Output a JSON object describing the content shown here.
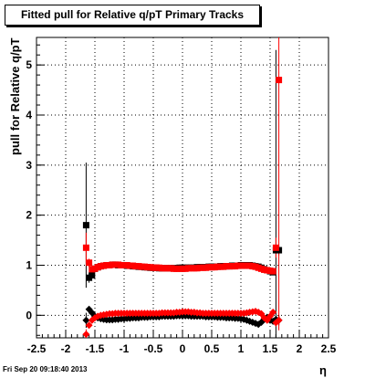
{
  "chart_data": {
    "type": "scatter",
    "title": "Fitted pull for Relative q/pT  Primary Tracks",
    "xlabel": "η",
    "ylabel": "pull for Relative q/pT",
    "xlim": [
      -2.5,
      2.5
    ],
    "ylim": [
      -0.45,
      5.55
    ],
    "x_ticks": [
      "-2.5",
      "-2",
      "-1.5",
      "-1",
      "-0.5",
      "0",
      "0.5",
      "1",
      "1.5",
      "2",
      "2.5"
    ],
    "y_ticks": [
      "0",
      "1",
      "2",
      "3",
      "4",
      "5"
    ],
    "grid": true,
    "series": [
      {
        "color": "#000000",
        "marker": "square",
        "x": [
          -1.65,
          -1.6,
          -1.55,
          -1.5,
          -1.45,
          -1.4,
          -1.35,
          -1.3,
          -1.25,
          -1.2,
          -1.15,
          -1.1,
          -1.05,
          -1.0,
          -0.95,
          -0.9,
          -0.85,
          -0.8,
          -0.75,
          -0.7,
          -0.65,
          -0.6,
          -0.55,
          -0.5,
          -0.45,
          -0.4,
          -0.35,
          -0.3,
          -0.25,
          -0.2,
          -0.15,
          -0.1,
          -0.05,
          0.0,
          0.05,
          0.1,
          0.15,
          0.2,
          0.25,
          0.3,
          0.35,
          0.4,
          0.45,
          0.5,
          0.55,
          0.6,
          0.65,
          0.7,
          0.75,
          0.8,
          0.85,
          0.9,
          0.95,
          1.0,
          1.05,
          1.1,
          1.15,
          1.2,
          1.25,
          1.3,
          1.35,
          1.4,
          1.45,
          1.5,
          1.55,
          1.6,
          1.65
        ],
        "y": [
          1.8,
          0.75,
          0.8,
          0.93,
          0.96,
          0.98,
          0.99,
          1.0,
          1.0,
          1.01,
          1.01,
          1.0,
          1.0,
          1.0,
          0.99,
          0.99,
          0.98,
          0.98,
          0.97,
          0.97,
          0.96,
          0.96,
          0.95,
          0.95,
          0.95,
          0.94,
          0.94,
          0.94,
          0.94,
          0.94,
          0.94,
          0.94,
          0.95,
          0.95,
          0.95,
          0.95,
          0.95,
          0.95,
          0.96,
          0.96,
          0.96,
          0.96,
          0.97,
          0.97,
          0.97,
          0.97,
          0.98,
          0.98,
          0.98,
          0.98,
          0.99,
          0.99,
          0.99,
          1.0,
          1.0,
          1.0,
          1.0,
          0.99,
          0.98,
          0.97,
          0.95,
          0.92,
          0.9,
          0.88,
          0.86,
          1.3,
          1.3
        ],
        "yerr": [
          1.25,
          0.1,
          0.05,
          0.03,
          0.02,
          0.02,
          0.02,
          0.02,
          0.02,
          0.02,
          0.02,
          0.02,
          0.02,
          0.02,
          0.02,
          0.02,
          0.02,
          0.02,
          0.02,
          0.02,
          0.02,
          0.02,
          0.02,
          0.02,
          0.02,
          0.02,
          0.02,
          0.02,
          0.02,
          0.02,
          0.02,
          0.02,
          0.02,
          0.02,
          0.02,
          0.02,
          0.02,
          0.02,
          0.02,
          0.02,
          0.02,
          0.02,
          0.02,
          0.02,
          0.02,
          0.02,
          0.02,
          0.02,
          0.02,
          0.02,
          0.02,
          0.02,
          0.02,
          0.02,
          0.02,
          0.02,
          0.02,
          0.02,
          0.02,
          0.02,
          0.02,
          0.02,
          0.02,
          0.03,
          0.05,
          4.0,
          0.1
        ]
      },
      {
        "color": "#ff0000",
        "marker": "square",
        "x": [
          -1.65,
          -1.6,
          -1.55,
          -1.5,
          -1.45,
          -1.4,
          -1.35,
          -1.3,
          -1.25,
          -1.2,
          -1.15,
          -1.1,
          -1.05,
          -1.0,
          -0.95,
          -0.9,
          -0.85,
          -0.8,
          -0.75,
          -0.7,
          -0.65,
          -0.6,
          -0.55,
          -0.5,
          -0.45,
          -0.4,
          -0.35,
          -0.3,
          -0.25,
          -0.2,
          -0.15,
          -0.1,
          -0.05,
          0.0,
          0.05,
          0.1,
          0.15,
          0.2,
          0.25,
          0.3,
          0.35,
          0.4,
          0.45,
          0.5,
          0.55,
          0.6,
          0.65,
          0.7,
          0.75,
          0.8,
          0.85,
          0.9,
          0.95,
          1.0,
          1.05,
          1.1,
          1.15,
          1.2,
          1.25,
          1.3,
          1.35,
          1.4,
          1.45,
          1.5,
          1.55,
          1.6,
          1.65
        ],
        "y": [
          1.35,
          1.05,
          0.92,
          0.93,
          0.96,
          0.98,
          0.99,
          1.0,
          1.0,
          1.01,
          1.01,
          1.01,
          1.0,
          1.0,
          1.0,
          0.99,
          0.99,
          0.98,
          0.98,
          0.97,
          0.97,
          0.96,
          0.96,
          0.95,
          0.95,
          0.95,
          0.94,
          0.94,
          0.94,
          0.94,
          0.93,
          0.93,
          0.93,
          0.93,
          0.93,
          0.94,
          0.94,
          0.94,
          0.94,
          0.95,
          0.95,
          0.95,
          0.96,
          0.96,
          0.96,
          0.97,
          0.97,
          0.97,
          0.98,
          0.98,
          0.98,
          0.98,
          0.99,
          0.99,
          0.99,
          0.99,
          0.99,
          0.98,
          0.97,
          0.95,
          0.93,
          0.91,
          0.9,
          0.89,
          0.88,
          1.35,
          4.7
        ],
        "yerr": [
          0.3,
          0.08,
          0.04,
          0.03,
          0.02,
          0.02,
          0.02,
          0.02,
          0.02,
          0.02,
          0.02,
          0.02,
          0.02,
          0.02,
          0.02,
          0.02,
          0.02,
          0.02,
          0.02,
          0.02,
          0.02,
          0.02,
          0.02,
          0.02,
          0.02,
          0.02,
          0.02,
          0.02,
          0.02,
          0.02,
          0.02,
          0.02,
          0.02,
          0.02,
          0.02,
          0.02,
          0.02,
          0.02,
          0.02,
          0.02,
          0.02,
          0.02,
          0.02,
          0.02,
          0.02,
          0.02,
          0.02,
          0.02,
          0.02,
          0.02,
          0.02,
          0.02,
          0.02,
          0.02,
          0.02,
          0.02,
          0.02,
          0.02,
          0.02,
          0.02,
          0.02,
          0.02,
          0.02,
          0.03,
          0.04,
          0.2,
          5.0
        ]
      },
      {
        "color": "#000000",
        "marker": "diamond",
        "x": [
          -1.65,
          -1.6,
          -1.55,
          -1.5,
          -1.45,
          -1.4,
          -1.35,
          -1.3,
          -1.25,
          -1.2,
          -1.15,
          -1.1,
          -1.05,
          -1.0,
          -0.95,
          -0.9,
          -0.85,
          -0.8,
          -0.75,
          -0.7,
          -0.65,
          -0.6,
          -0.55,
          -0.5,
          -0.45,
          -0.4,
          -0.35,
          -0.3,
          -0.25,
          -0.2,
          -0.15,
          -0.1,
          -0.05,
          0.0,
          0.05,
          0.1,
          0.15,
          0.2,
          0.25,
          0.3,
          0.35,
          0.4,
          0.45,
          0.5,
          0.55,
          0.6,
          0.65,
          0.7,
          0.75,
          0.8,
          0.85,
          0.9,
          0.95,
          1.0,
          1.05,
          1.1,
          1.15,
          1.2,
          1.25,
          1.3,
          1.35,
          1.4,
          1.45,
          1.5,
          1.55,
          1.6,
          1.65
        ],
        "y": [
          -0.1,
          0.12,
          0.05,
          -0.02,
          -0.05,
          -0.07,
          -0.08,
          -0.09,
          -0.09,
          -0.09,
          -0.08,
          -0.08,
          -0.07,
          -0.07,
          -0.06,
          -0.06,
          -0.05,
          -0.05,
          -0.05,
          -0.04,
          -0.04,
          -0.04,
          -0.03,
          -0.03,
          -0.03,
          -0.03,
          -0.02,
          -0.02,
          -0.02,
          -0.02,
          -0.02,
          -0.01,
          -0.01,
          -0.01,
          -0.01,
          -0.01,
          -0.02,
          -0.02,
          -0.02,
          -0.02,
          -0.02,
          -0.03,
          -0.03,
          -0.03,
          -0.03,
          -0.04,
          -0.04,
          -0.04,
          -0.05,
          -0.05,
          -0.05,
          -0.06,
          -0.06,
          -0.07,
          -0.08,
          -0.1,
          -0.12,
          -0.14,
          -0.16,
          -0.18,
          -0.14,
          -0.08,
          -0.04,
          -0.1,
          -0.12,
          -0.08,
          -0.1
        ],
        "yerr": [
          0.15,
          0.06,
          0.04,
          0.03,
          0.02,
          0.02,
          0.02,
          0.02,
          0.02,
          0.02,
          0.02,
          0.02,
          0.02,
          0.02,
          0.02,
          0.02,
          0.02,
          0.02,
          0.02,
          0.02,
          0.02,
          0.02,
          0.02,
          0.02,
          0.02,
          0.02,
          0.02,
          0.02,
          0.02,
          0.02,
          0.02,
          0.02,
          0.02,
          0.02,
          0.02,
          0.02,
          0.02,
          0.02,
          0.02,
          0.02,
          0.02,
          0.02,
          0.02,
          0.02,
          0.02,
          0.02,
          0.02,
          0.02,
          0.02,
          0.02,
          0.02,
          0.02,
          0.02,
          0.02,
          0.02,
          0.02,
          0.02,
          0.02,
          0.02,
          0.02,
          0.02,
          0.02,
          0.02,
          0.03,
          0.04,
          0.06,
          0.1
        ]
      },
      {
        "color": "#ff0000",
        "marker": "diamond",
        "x": [
          -1.65,
          -1.6,
          -1.55,
          -1.5,
          -1.45,
          -1.4,
          -1.35,
          -1.3,
          -1.25,
          -1.2,
          -1.15,
          -1.1,
          -1.05,
          -1.0,
          -0.95,
          -0.9,
          -0.85,
          -0.8,
          -0.75,
          -0.7,
          -0.65,
          -0.6,
          -0.55,
          -0.5,
          -0.45,
          -0.4,
          -0.35,
          -0.3,
          -0.25,
          -0.2,
          -0.15,
          -0.1,
          -0.05,
          0.0,
          0.05,
          0.1,
          0.15,
          0.2,
          0.25,
          0.3,
          0.35,
          0.4,
          0.45,
          0.5,
          0.55,
          0.6,
          0.65,
          0.7,
          0.75,
          0.8,
          0.85,
          0.9,
          0.95,
          1.0,
          1.05,
          1.1,
          1.15,
          1.2,
          1.25,
          1.3,
          1.35,
          1.4,
          1.45,
          1.5,
          1.55,
          1.6,
          1.65
        ],
        "y": [
          -0.38,
          -0.2,
          -0.1,
          -0.05,
          -0.02,
          0.0,
          0.01,
          0.02,
          0.03,
          0.03,
          0.04,
          0.04,
          0.04,
          0.04,
          0.04,
          0.04,
          0.04,
          0.04,
          0.04,
          0.04,
          0.04,
          0.04,
          0.04,
          0.04,
          0.04,
          0.04,
          0.05,
          0.05,
          0.05,
          0.05,
          0.05,
          0.06,
          0.06,
          0.07,
          0.07,
          0.07,
          0.06,
          0.06,
          0.05,
          0.05,
          0.04,
          0.04,
          0.04,
          0.04,
          0.04,
          0.04,
          0.04,
          0.04,
          0.04,
          0.04,
          0.04,
          0.04,
          0.04,
          0.04,
          0.04,
          0.05,
          0.06,
          0.07,
          0.08,
          0.06,
          0.03,
          -0.05,
          -0.1,
          -0.02,
          0.06,
          -0.15,
          -0.1
        ],
        "yerr": [
          0.1,
          0.05,
          0.04,
          0.03,
          0.02,
          0.02,
          0.02,
          0.02,
          0.02,
          0.02,
          0.02,
          0.02,
          0.02,
          0.02,
          0.02,
          0.02,
          0.02,
          0.02,
          0.02,
          0.02,
          0.02,
          0.02,
          0.02,
          0.02,
          0.02,
          0.02,
          0.02,
          0.02,
          0.02,
          0.02,
          0.02,
          0.02,
          0.02,
          0.02,
          0.02,
          0.02,
          0.02,
          0.02,
          0.02,
          0.02,
          0.02,
          0.02,
          0.02,
          0.02,
          0.02,
          0.02,
          0.02,
          0.02,
          0.02,
          0.02,
          0.02,
          0.02,
          0.02,
          0.02,
          0.02,
          0.02,
          0.02,
          0.02,
          0.02,
          0.02,
          0.02,
          0.02,
          0.02,
          0.03,
          0.04,
          0.06,
          0.1
        ]
      }
    ]
  },
  "footer_text": "Fri Sep 20 09:18:40 2013"
}
